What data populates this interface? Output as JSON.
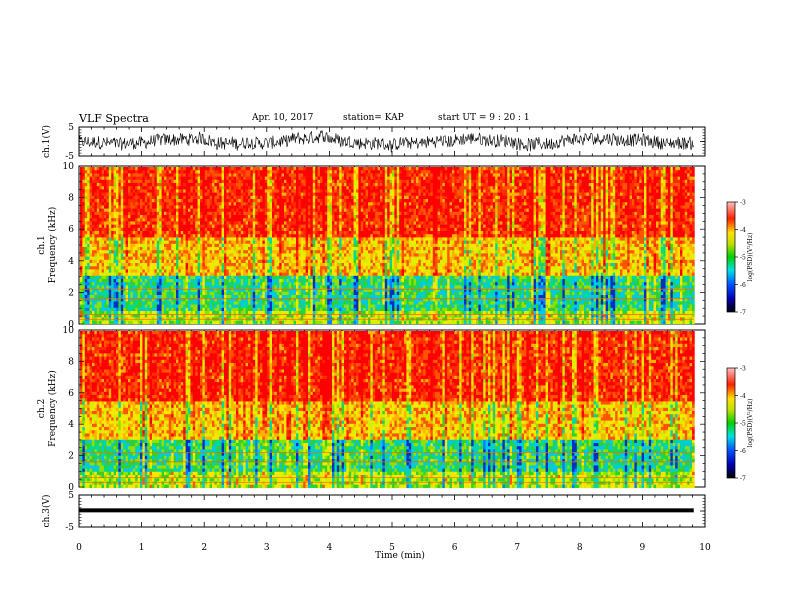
{
  "header": {
    "title": "VLF Spectra",
    "date": "Apr. 10, 2017",
    "station": "station= KAP",
    "start": "start  UT  =   9 : 20 : 1"
  },
  "chart_data": [
    {
      "type": "line",
      "name": "ch1-waveform",
      "ylabel": "ch.1(V)",
      "ylim": [
        -5,
        5
      ],
      "yticks": [
        "5",
        "-5"
      ],
      "xlim": [
        0,
        10
      ]
    },
    {
      "type": "heatmap",
      "name": "ch1-spectrogram",
      "ylabel": "ch.1\nFrequency (kHz)",
      "ylim": [
        0,
        10
      ],
      "yticks": [
        "0",
        "2",
        "4",
        "6",
        "8",
        "10"
      ],
      "xlim": [
        0,
        10
      ],
      "colorbar": {
        "label": "log(PSD)(V²/Hz)",
        "range": [
          -7,
          -3
        ],
        "ticks": [
          "-3",
          "-4",
          "-5",
          "-6",
          "-7"
        ]
      }
    },
    {
      "type": "heatmap",
      "name": "ch2-spectrogram",
      "ylabel": "ch.2\nFrequency (kHz)",
      "ylim": [
        0,
        10
      ],
      "yticks": [
        "0",
        "2",
        "4",
        "6",
        "8",
        "10"
      ],
      "xlim": [
        0,
        10
      ],
      "colorbar": {
        "label": "log(PSD)(V²/Hz)",
        "range": [
          -7,
          -3
        ],
        "ticks": [
          "-3",
          "-4",
          "-5",
          "-6",
          "-7"
        ]
      }
    },
    {
      "type": "line",
      "name": "ch3-waveform",
      "ylabel": "ch.3(V)",
      "ylim": [
        -5,
        5
      ],
      "yticks": [
        "5",
        "-5"
      ],
      "xlim": [
        0,
        10
      ],
      "xlabel": "Time (min)",
      "xticks": [
        "0",
        "1",
        "2",
        "3",
        "4",
        "5",
        "6",
        "7",
        "8",
        "9",
        "10"
      ]
    }
  ]
}
